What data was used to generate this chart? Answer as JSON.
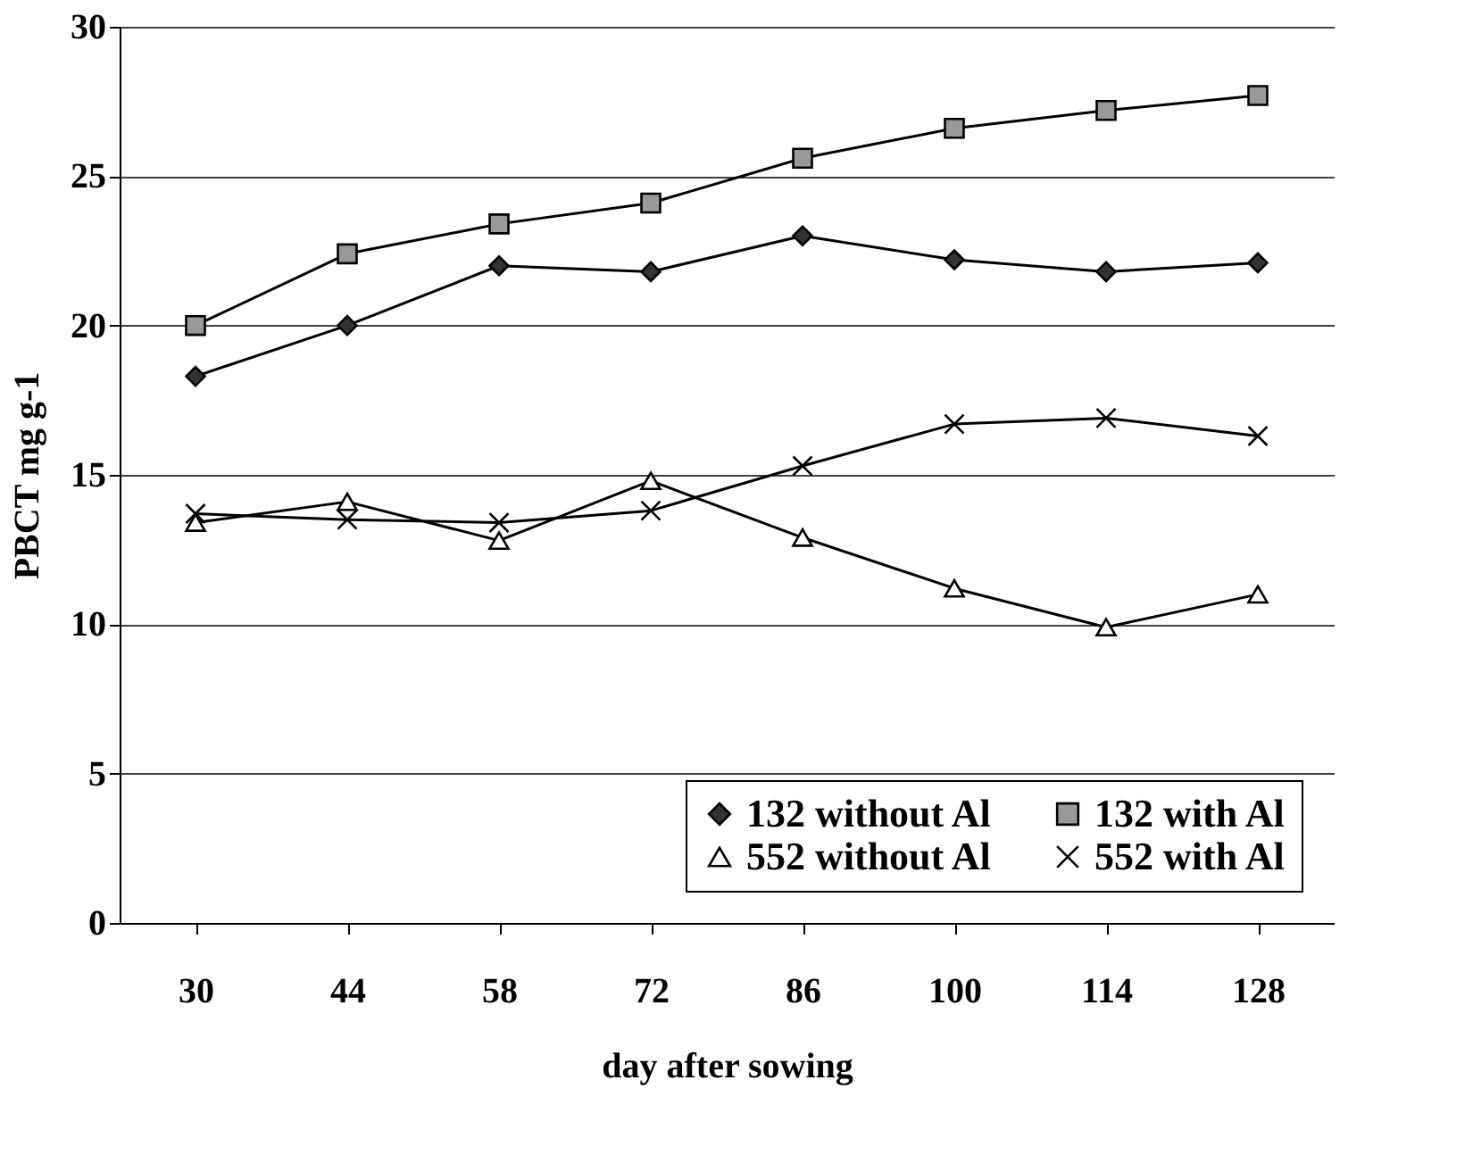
{
  "chart_data": {
    "type": "line",
    "xlabel": "day after sowing",
    "ylabel": "PBCT mg g-1",
    "categories": [
      "30",
      "44",
      "58",
      "72",
      "86",
      "100",
      "114",
      "128"
    ],
    "series": [
      {
        "name": "132 without Al",
        "color": "#333333",
        "marker": "diamond",
        "values": [
          18.3,
          20.0,
          22.0,
          21.8,
          23.0,
          22.2,
          21.8,
          22.1
        ]
      },
      {
        "name": "132 with Al",
        "color": "#999999",
        "marker": "square",
        "values": [
          20.0,
          22.4,
          23.4,
          24.1,
          25.6,
          26.6,
          27.2,
          27.7
        ]
      },
      {
        "name": "552 without Al",
        "color": "#ffffff",
        "marker": "triangle",
        "values": [
          13.4,
          14.1,
          12.8,
          14.8,
          12.9,
          11.2,
          9.9,
          11.0
        ]
      },
      {
        "name": "552 with Al",
        "color": "#000000",
        "marker": "cross",
        "values": [
          13.7,
          13.5,
          13.4,
          13.8,
          15.3,
          16.7,
          16.9,
          16.3
        ]
      }
    ],
    "ylim": [
      0,
      30
    ],
    "yticks": [
      0,
      5,
      10,
      15,
      20,
      25,
      30
    ],
    "grid": "y",
    "legend": "bottom",
    "line_style": "solid"
  }
}
